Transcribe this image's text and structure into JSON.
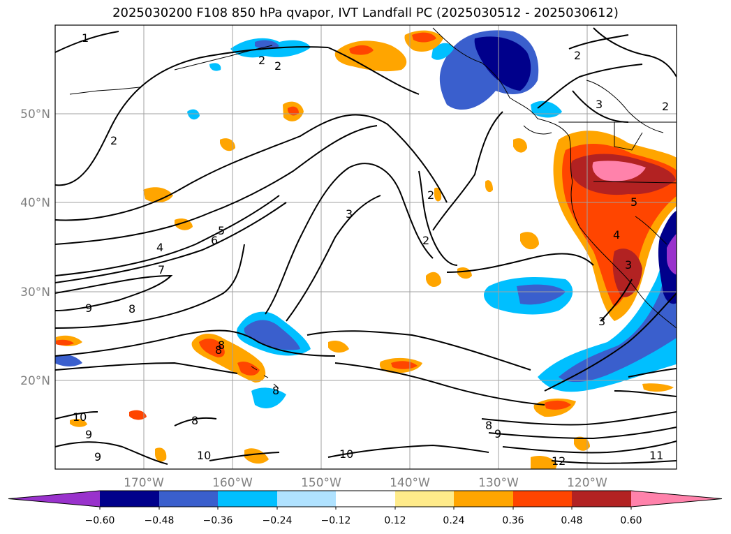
{
  "title": "2025030200 F108 850 hPa qvapor, IVT Landfall PC (2025030512 - 2025030612)",
  "lat_labels": [
    "50°N",
    "40°N",
    "30°N",
    "20°N"
  ],
  "lon_labels": [
    "170°W",
    "160°W",
    "150°W",
    "140°W",
    "130°W",
    "120°W"
  ],
  "colorbar": {
    "ticks": [
      "−0.60",
      "−0.48",
      "−0.36",
      "−0.24",
      "−0.12",
      "0.12",
      "0.24",
      "0.36",
      "0.48",
      "0.60"
    ],
    "colors": [
      "#9932cc",
      "#00008b",
      "#3a5fcd",
      "#00bfff",
      "#b0e2ff",
      "#ffffff",
      "#ffeb8a",
      "#ffa500",
      "#ff4500",
      "#b22222",
      "#ff82ab"
    ]
  },
  "contour_labels": [
    "1",
    "2",
    "2",
    "2",
    "2",
    "2",
    "3",
    "3",
    "2",
    "2",
    "4",
    "5",
    "6",
    "7",
    "8",
    "9",
    "3",
    "5",
    "3",
    "4",
    "8",
    "8",
    "8",
    "10",
    "9",
    "9",
    "8",
    "10",
    "10",
    "8",
    "9",
    "12",
    "11"
  ],
  "colors": {
    "contour": "#000000",
    "grid": "#a0a0a0",
    "axis_labels": "#808080"
  }
}
